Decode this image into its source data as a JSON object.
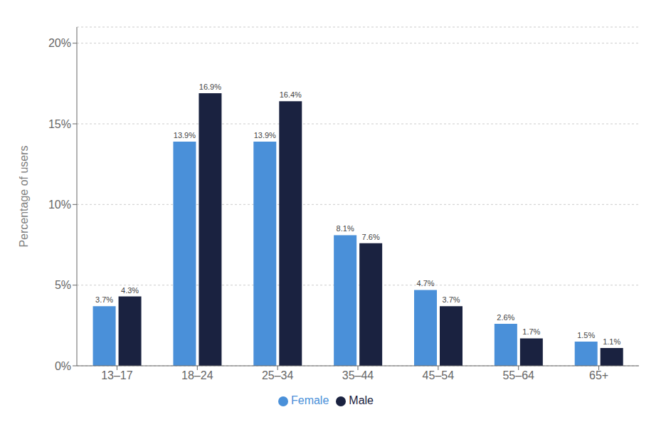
{
  "chart_data": {
    "type": "bar",
    "categories": [
      "13–17",
      "18–24",
      "25–34",
      "35–44",
      "45–54",
      "55–64",
      "65+"
    ],
    "series": [
      {
        "name": "Female",
        "color": "#4a90d9",
        "values": [
          3.7,
          13.9,
          13.9,
          8.1,
          4.7,
          2.6,
          1.5
        ],
        "value_labels": [
          "3.7%",
          "13.9%",
          "13.9%",
          "8.1%",
          "4.7%",
          "2.6%",
          "1.5%"
        ]
      },
      {
        "name": "Male",
        "color": "#1a2240",
        "values": [
          4.3,
          16.9,
          16.4,
          7.6,
          3.7,
          1.7,
          1.1
        ],
        "value_labels": [
          "4.3%",
          "16.9%",
          "16.4%",
          "7.6%",
          "3.7%",
          "1.7%",
          "1.1%"
        ]
      }
    ],
    "ylabel": "Percentage of users",
    "ylim": [
      0,
      21
    ],
    "yticks": [
      {
        "value": 0,
        "label": "0%"
      },
      {
        "value": 5,
        "label": "5%"
      },
      {
        "value": 10,
        "label": "10%"
      },
      {
        "value": 15,
        "label": "15%"
      },
      {
        "value": 20,
        "label": "20%"
      }
    ],
    "grid": true,
    "legend": "bottom",
    "data_labels": true
  }
}
